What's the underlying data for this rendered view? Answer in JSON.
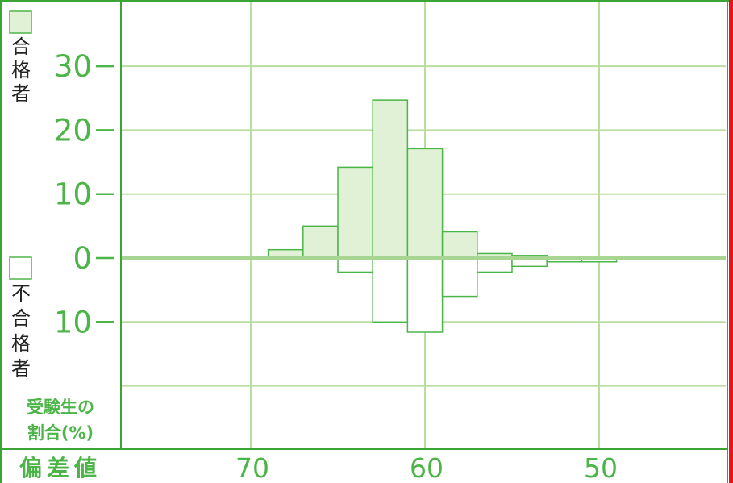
{
  "colors": {
    "frame": "#3aa535",
    "grid": "#b9dea0",
    "pass_fill": "#e1f1d6",
    "fail_fill": "#ffffff",
    "bar_stroke": "#4bb548",
    "text_green": "#4bb548",
    "edge_red": "#e8141b"
  },
  "legend": {
    "pass_label": "合格者",
    "fail_label": "不合格者"
  },
  "y_caption": {
    "line1": "受験生の",
    "line2": "割合(%)"
  },
  "x_title": "偏差値",
  "chart_data": {
    "type": "bar",
    "title": "",
    "xlabel": "偏差値",
    "ylabel": "受験生の割合(%)",
    "y_tick_values": [
      30,
      20,
      10,
      0,
      -10
    ],
    "y_tick_labels": [
      "30",
      "20",
      "10",
      "0",
      "10"
    ],
    "x_tick_values": [
      70,
      60,
      50
    ],
    "x_tick_labels": [
      "70",
      "60",
      "50"
    ],
    "xlim": [
      77.5,
      42.8
    ],
    "ylim": [
      -30,
      40
    ],
    "bin_width": 2,
    "grid": true,
    "x_reversed": true,
    "series": [
      {
        "name": "合格者",
        "bins": [
          {
            "x_from": 69,
            "x_to": 67,
            "value": 1.3
          },
          {
            "x_from": 67,
            "x_to": 65,
            "value": 5.0
          },
          {
            "x_from": 65,
            "x_to": 63,
            "value": 14.2
          },
          {
            "x_from": 63,
            "x_to": 61,
            "value": 24.7
          },
          {
            "x_from": 61,
            "x_to": 59,
            "value": 17.1
          },
          {
            "x_from": 59,
            "x_to": 57,
            "value": 4.1
          },
          {
            "x_from": 57,
            "x_to": 55,
            "value": 0.7
          },
          {
            "x_from": 55,
            "x_to": 53,
            "value": 0.4
          }
        ]
      },
      {
        "name": "不合格者",
        "bins": [
          {
            "x_from": 65,
            "x_to": 63,
            "value": -2.2
          },
          {
            "x_from": 63,
            "x_to": 61,
            "value": -10.0
          },
          {
            "x_from": 61,
            "x_to": 59,
            "value": -11.6
          },
          {
            "x_from": 59,
            "x_to": 57,
            "value": -6.0
          },
          {
            "x_from": 57,
            "x_to": 55,
            "value": -2.2
          },
          {
            "x_from": 55,
            "x_to": 53,
            "value": -1.3
          },
          {
            "x_from": 53,
            "x_to": 51,
            "value": -0.6
          },
          {
            "x_from": 51,
            "x_to": 49,
            "value": -0.6
          }
        ]
      }
    ]
  }
}
